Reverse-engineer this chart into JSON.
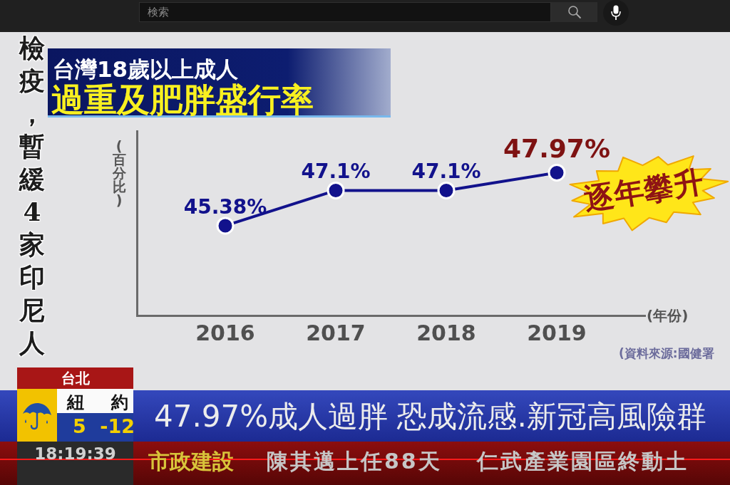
{
  "chart_data": {
    "type": "line",
    "title": "台灣18歲以上成人",
    "subtitle": "過重及肥胖盛行率",
    "xlabel": "(年份)",
    "ylabel": "(百分比)",
    "x": [
      2016,
      2017,
      2018,
      2019
    ],
    "xlim": [
      2015.2,
      2019.8
    ],
    "xticks": [
      2016,
      2017,
      2018,
      2019
    ],
    "ylim": [
      41,
      50
    ],
    "series": [
      {
        "color": "#12128c",
        "values": [
          45.38,
          47.1,
          47.1,
          47.97
        ],
        "value_labels": [
          "45.38%",
          "47.1%",
          "47.1%",
          "47.97%"
        ]
      }
    ],
    "marker": "circle",
    "grid": false,
    "legend": false,
    "tick_labels": "x",
    "annotations": [
      "逐年攀升",
      "(資料來源:國健署",
      "檢疫，暫緩4家印尼人",
      "台北",
      "紐約",
      "5 -12",
      "18:19:39",
      "47.97%成人過胖 恐成流感.新冠高風險群",
      "市政建設",
      "陳其邁上任88天 仁武產業園區終動土",
      "検索"
    ]
  }
}
